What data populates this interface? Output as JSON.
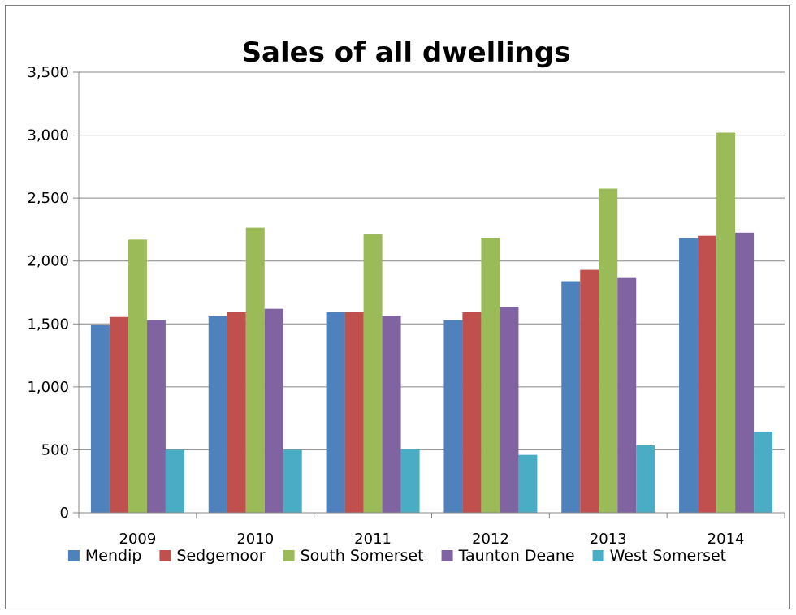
{
  "chart_data": {
    "type": "bar",
    "title": "Sales of all dwellings",
    "xlabel": "",
    "ylabel": "",
    "categories": [
      "2009",
      "2010",
      "2011",
      "2012",
      "2013",
      "2014"
    ],
    "ylim": [
      0,
      3500
    ],
    "yticks": [
      0,
      500,
      1000,
      1500,
      2000,
      2500,
      3000,
      3500
    ],
    "ytick_labels": [
      "0",
      "500",
      "1,000",
      "1,500",
      "2,000",
      "2,500",
      "3,000",
      "3,500"
    ],
    "grid": true,
    "legend_position": "bottom",
    "series": [
      {
        "name": "Mendip",
        "color": "#4F81BD",
        "values": [
          1490,
          1560,
          1595,
          1530,
          1840,
          2185
        ]
      },
      {
        "name": "Sedgemoor",
        "color": "#C0504D",
        "values": [
          1555,
          1595,
          1595,
          1595,
          1930,
          2200
        ]
      },
      {
        "name": "South Somerset",
        "color": "#9BBB59",
        "values": [
          2170,
          2265,
          2215,
          2185,
          2575,
          3020
        ]
      },
      {
        "name": "Taunton Deane",
        "color": "#8064A2",
        "values": [
          1530,
          1620,
          1565,
          1635,
          1865,
          2225
        ]
      },
      {
        "name": "West Somerset",
        "color": "#4BACC6",
        "values": [
          500,
          500,
          505,
          460,
          535,
          645
        ]
      }
    ]
  }
}
